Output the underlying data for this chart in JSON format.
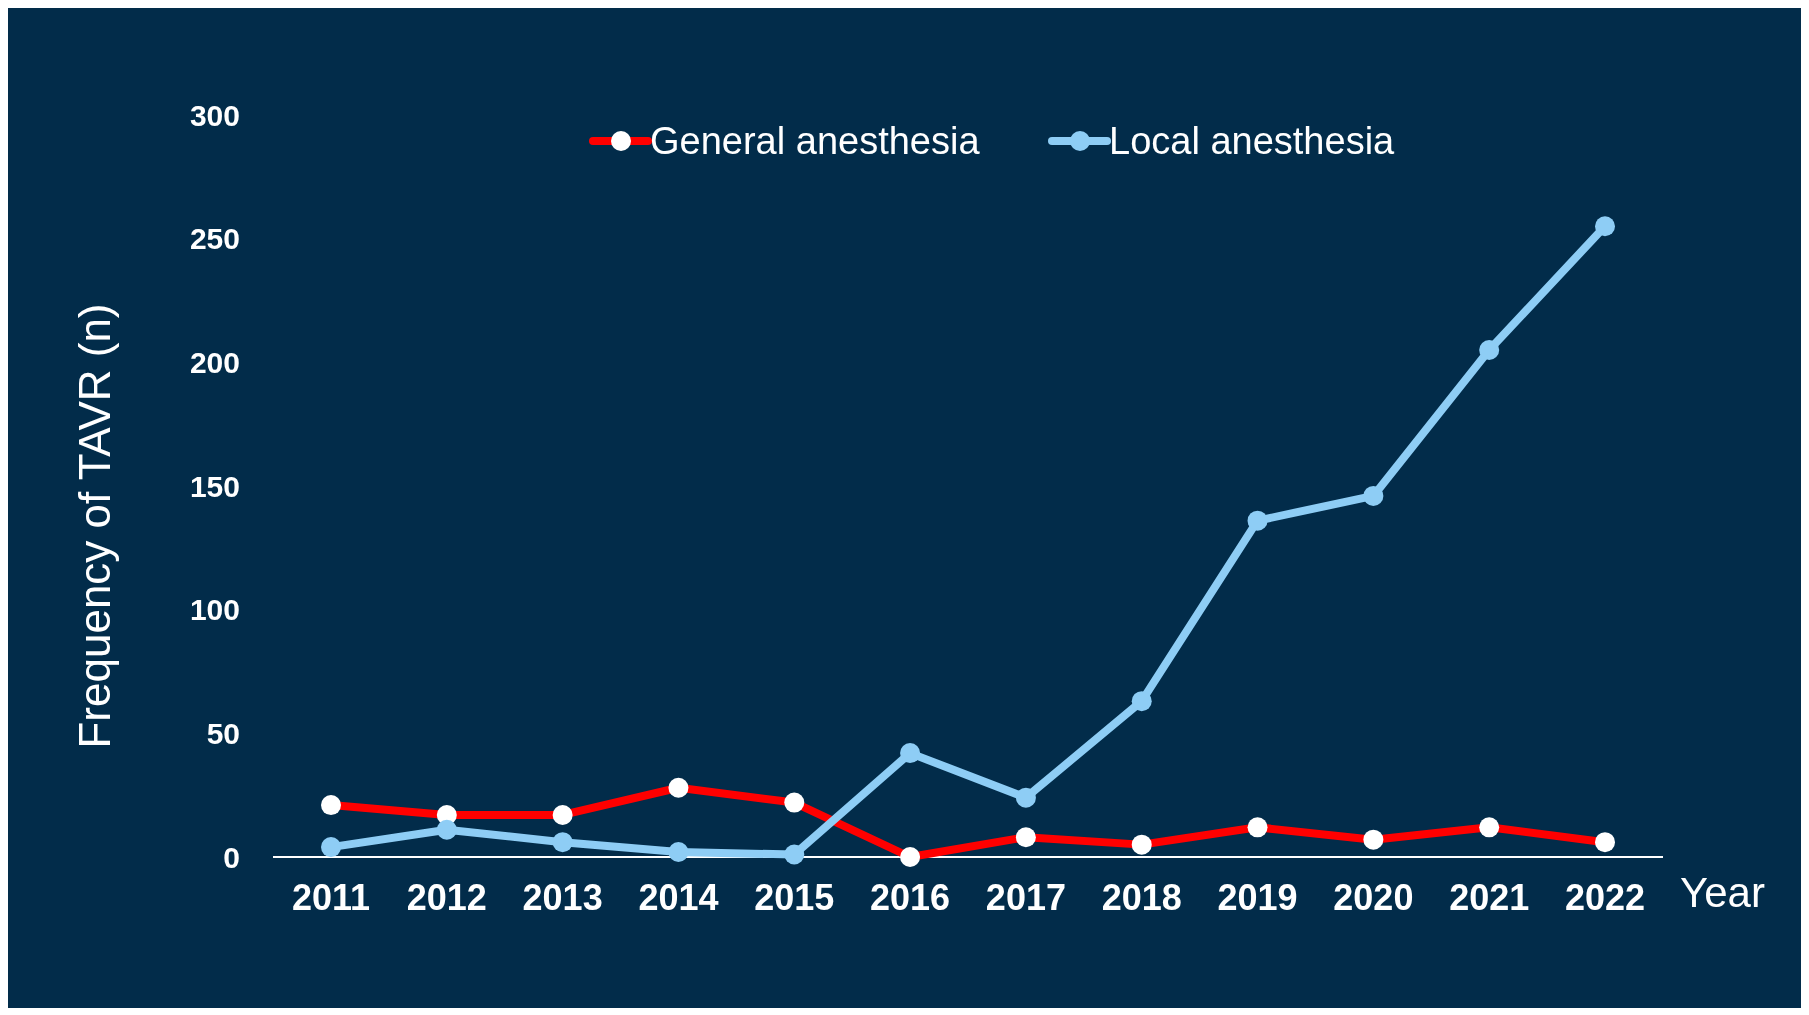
{
  "chart_data": {
    "type": "line",
    "xlabel": "Year",
    "ylabel": "Frequency of TAVR (n)",
    "categories": [
      "2011",
      "2012",
      "2013",
      "2014",
      "2015",
      "2016",
      "2017",
      "2018",
      "2019",
      "2020",
      "2021",
      "2022"
    ],
    "series": [
      {
        "name": "General anesthesia",
        "color": "#ff0000",
        "values": [
          21,
          17,
          17,
          28,
          22,
          0,
          8,
          5,
          12,
          7,
          12,
          6
        ]
      },
      {
        "name": "Local anesthesia",
        "color": "#8ecdf5",
        "values": [
          4,
          11,
          6,
          2,
          1,
          42,
          24,
          63,
          136,
          146,
          205,
          255
        ]
      }
    ],
    "ylim": [
      0,
      300
    ],
    "yticks": [
      0,
      50,
      100,
      150,
      200,
      250,
      300
    ],
    "grid": false,
    "legend": "top",
    "marker": "circle",
    "line_style": "solid"
  }
}
